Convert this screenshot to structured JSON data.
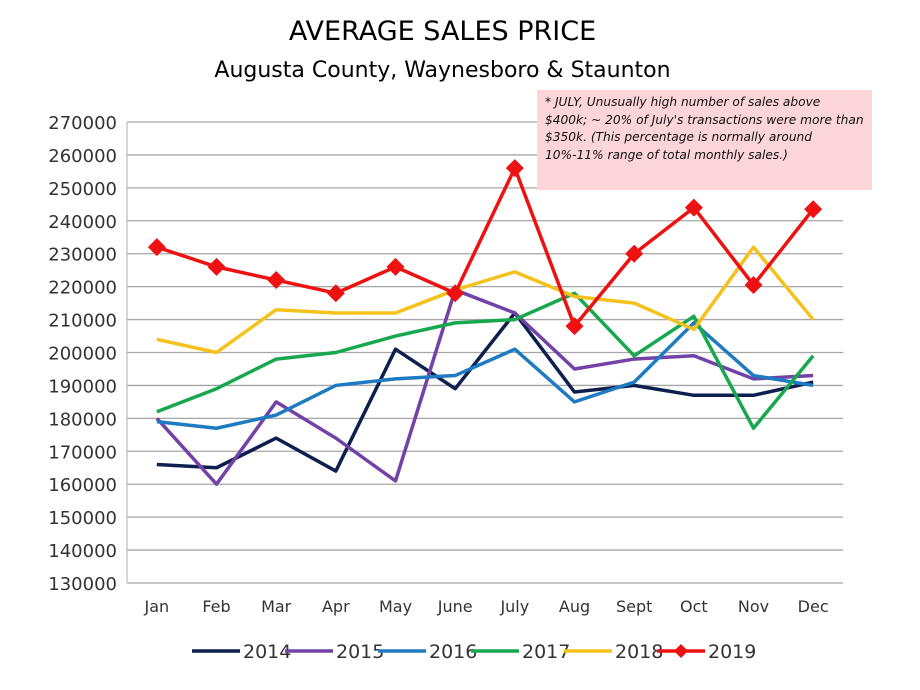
{
  "chart_data": {
    "type": "line",
    "title": "AVERAGE SALES PRICE",
    "subtitle": "Augusta County, Waynesboro & Staunton",
    "categories": [
      "Jan",
      "Feb",
      "Mar",
      "Apr",
      "May",
      "June",
      "July",
      "Aug",
      "Sept",
      "Oct",
      "Nov",
      "Dec"
    ],
    "ylim": [
      130000,
      270000
    ],
    "yticks": [
      130000,
      140000,
      150000,
      160000,
      170000,
      180000,
      190000,
      200000,
      210000,
      220000,
      230000,
      240000,
      250000,
      260000,
      270000
    ],
    "grid": true,
    "legend_placement": "bottom",
    "annotation": "* JULY, Unusually high number of sales above $400k; ~ 20% of July's transactions were more than $350k. (This percentage is normally around 10%-11% range of total monthly sales.)",
    "series": [
      {
        "name": "2014",
        "color": "#0d1f4f",
        "marker": "none",
        "values": [
          166000,
          165000,
          174000,
          164000,
          201000,
          189000,
          212000,
          188000,
          190000,
          187000,
          187000,
          191000
        ]
      },
      {
        "name": "2015",
        "color": "#7242a6",
        "marker": "none",
        "values": [
          180000,
          160000,
          185000,
          174000,
          161000,
          219000,
          212000,
          195000,
          198000,
          199000,
          192000,
          193000
        ]
      },
      {
        "name": "2016",
        "color": "#1f7bc1",
        "marker": "none",
        "values": [
          179000,
          177000,
          181000,
          190000,
          192000,
          193000,
          201000,
          185000,
          191000,
          209000,
          193000,
          190000
        ]
      },
      {
        "name": "2017",
        "color": "#17a84e",
        "marker": "none",
        "values": [
          182000,
          189000,
          198000,
          200000,
          205000,
          209000,
          210000,
          218000,
          199000,
          211000,
          177000,
          199000
        ]
      },
      {
        "name": "2018",
        "color": "#f5c21b",
        "marker": "none",
        "values": [
          204000,
          200000,
          213000,
          212000,
          212000,
          219000,
          224500,
          217000,
          215000,
          207000,
          232000,
          210000
        ]
      },
      {
        "name": "2019",
        "color": "#ee1111",
        "marker": "diamond",
        "values": [
          232000,
          226000,
          222000,
          218000,
          226000,
          218000,
          256000,
          208000,
          230000,
          244000,
          220500,
          243500
        ]
      }
    ]
  }
}
